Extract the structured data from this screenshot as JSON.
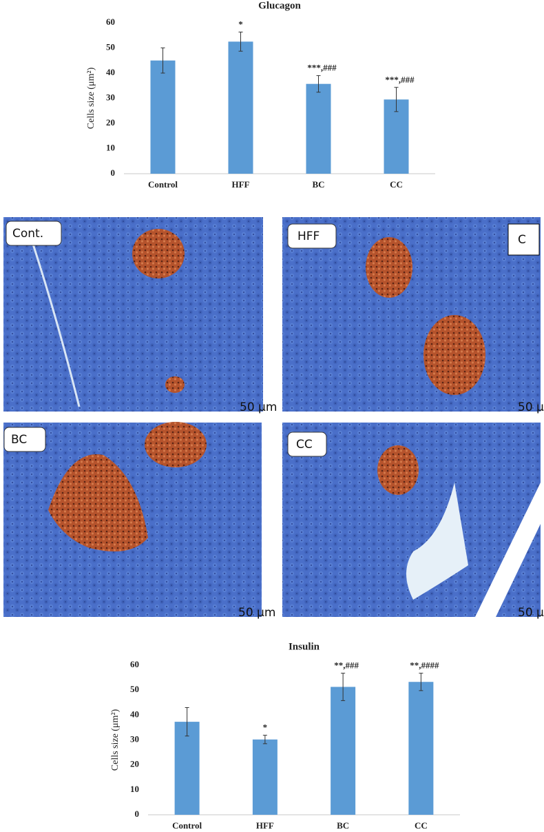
{
  "chart_data": [
    {
      "type": "bar",
      "title": "Glucagon",
      "y_label": "Cells size (μm²)",
      "categories": [
        "Control",
        "HFF",
        "BC",
        "CC"
      ],
      "values": [
        45,
        52.5,
        35.7,
        29.5
      ],
      "errors": [
        5,
        3.8,
        3.3,
        4.8
      ],
      "annotations": [
        null,
        "*",
        "***,###",
        "***,###"
      ],
      "color": "#5b9bd5",
      "ylim": [
        0,
        60
      ],
      "yticks": [
        0,
        10,
        20,
        30,
        40,
        50,
        60
      ]
    },
    {
      "type": "bar",
      "title": "Insulin",
      "y_label": "Cells size (μm²)",
      "categories": [
        "Control",
        "HFF",
        "BC",
        "CC"
      ],
      "values": [
        37.3,
        30.2,
        51.3,
        53.3
      ],
      "errors": [
        5.7,
        1.7,
        5.5,
        3.5
      ],
      "annotations": [
        null,
        "*",
        "**,###",
        "**,####"
      ],
      "color": "#5b9bd5",
      "ylim": [
        0,
        60
      ],
      "yticks": [
        0,
        10,
        20,
        30,
        40,
        50,
        60
      ]
    }
  ],
  "panels": [
    {
      "label": "Cont."
    },
    {
      "label": "HFF"
    },
    {
      "label": "BC"
    },
    {
      "label": "CC"
    }
  ],
  "panel_letter": "C",
  "scale_bar": "50 μm"
}
